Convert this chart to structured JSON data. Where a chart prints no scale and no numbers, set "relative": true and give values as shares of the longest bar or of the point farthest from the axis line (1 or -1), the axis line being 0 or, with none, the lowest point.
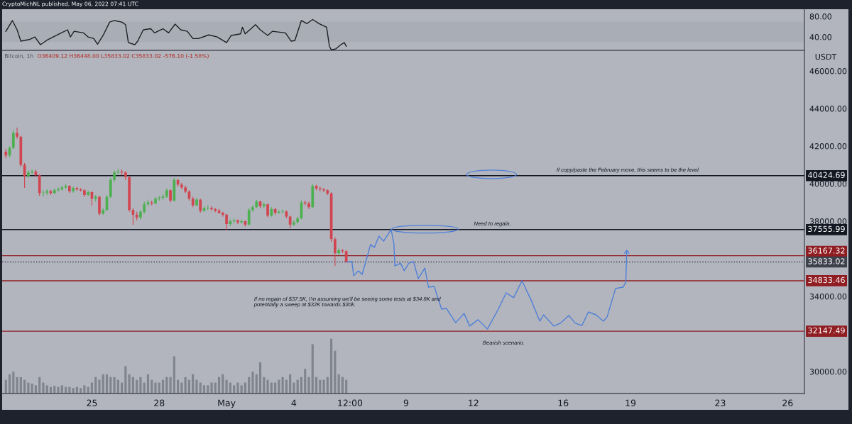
{
  "chart_data": [
    {
      "type": "line",
      "title": "CryptoMichNL published, May 06, 2022 07:41 UTC",
      "tick_labels": "y",
      "xlim": [
        "2022-04-21T00:00",
        "2022-05-26T18:00"
      ],
      "ylim": [
        14,
        94
      ],
      "yticks": [
        {
          "value": 80,
          "label": "80.00"
        },
        {
          "value": 40,
          "label": "40.00"
        }
      ],
      "bands": [
        {
          "axis": "y",
          "from": 30,
          "to": 70,
          "color": "#a9adb5"
        }
      ],
      "x": [
        "2022-04-21T04:00",
        "2022-04-21T11:00",
        "2022-04-21T16:00",
        "2022-04-21T20:00",
        "2022-04-22T05:00",
        "2022-04-22T11:00",
        "2022-04-22T17:00",
        "2022-04-23T01:00",
        "2022-04-23T13:00",
        "2022-04-23T22:00",
        "2022-04-24T01:00",
        "2022-04-24T05:00",
        "2022-04-24T15:00",
        "2022-04-24T20:00",
        "2022-04-25T02:00",
        "2022-04-25T06:00",
        "2022-04-25T12:00",
        "2022-04-25T19:00",
        "2022-04-26T00:00",
        "2022-04-26T08:00",
        "2022-04-26T12:00",
        "2022-04-26T15:00",
        "2022-04-26T22:00",
        "2022-04-27T01:00",
        "2022-04-27T07:00",
        "2022-04-27T15:00",
        "2022-04-27T19:00",
        "2022-04-28T04:00",
        "2022-04-28T10:00",
        "2022-04-28T17:00",
        "2022-04-28T23:00",
        "2022-04-29T06:00",
        "2022-04-29T12:00",
        "2022-04-29T18:00",
        "2022-04-30T05:00",
        "2022-04-30T14:00",
        "2022-05-01T00:00",
        "2022-05-01T05:00",
        "2022-05-01T15:00",
        "2022-05-01T17:00",
        "2022-05-01T20:00",
        "2022-05-02T07:00",
        "2022-05-02T12:00",
        "2022-05-02T20:00",
        "2022-05-03T01:00",
        "2022-05-03T15:00",
        "2022-05-03T21:00",
        "2022-05-04T01:00",
        "2022-05-04T08:00",
        "2022-05-04T14:00",
        "2022-05-04T20:00",
        "2022-05-05T03:00",
        "2022-05-05T11:00",
        "2022-05-05T14:00",
        "2022-05-05T16:00",
        "2022-05-05T21:00",
        "2022-05-06T03:00",
        "2022-05-06T06:00",
        "2022-05-06T08:00"
      ],
      "series": [
        {
          "color": "#1e1f23",
          "values": [
            51,
            72,
            54,
            32,
            35,
            40,
            25,
            35,
            46,
            54,
            40,
            51,
            48,
            40,
            37,
            26,
            43,
            69,
            72,
            69,
            64,
            29,
            25,
            32,
            54,
            56,
            48,
            56,
            48,
            65,
            54,
            51,
            37,
            37,
            44,
            40,
            29,
            43,
            46,
            59,
            46,
            64,
            54,
            43,
            51,
            48,
            32,
            33,
            72,
            66,
            74,
            66,
            59,
            22,
            15,
            17,
            26,
            29,
            22
          ]
        }
      ]
    },
    {
      "type": "candlestick",
      "subtitle": "Bitcoin, 1h",
      "ylabel": "USDT",
      "xlim": [
        "2022-04-21T00:00",
        "2022-05-26T18:00"
      ],
      "ylim": [
        28830,
        47060
      ],
      "xticks": [
        {
          "value": "2022-04-25",
          "label": "25"
        },
        {
          "value": "2022-04-28",
          "label": "28"
        },
        {
          "value": "2022-05-01",
          "label": "May"
        },
        {
          "value": "2022-05-04",
          "label": "4"
        },
        {
          "value": "2022-05-06T12:00",
          "label": "12:00"
        },
        {
          "value": "2022-05-09",
          "label": "9"
        },
        {
          "value": "2022-05-12",
          "label": "12"
        },
        {
          "value": "2022-05-16",
          "label": "16"
        },
        {
          "value": "2022-05-19",
          "label": "19"
        },
        {
          "value": "2022-05-23",
          "label": "23"
        },
        {
          "value": "2022-05-26",
          "label": "26"
        }
      ],
      "yticks": [
        {
          "value": 30000,
          "label": "30000.00"
        },
        {
          "value": 34000,
          "label": "34000.00"
        },
        {
          "value": 38000,
          "label": "38000.00"
        },
        {
          "value": 40000,
          "label": "40000.00"
        },
        {
          "value": 42000,
          "label": "42000.00"
        },
        {
          "value": 44000,
          "label": "44000.00"
        },
        {
          "value": 46000,
          "label": "46000.00"
        }
      ],
      "x": [
        "2022-04-21T04:00",
        "2022-04-21T08:00",
        "2022-04-21T12:00",
        "2022-04-21T16:00",
        "2022-04-21T20:00",
        "2022-04-22T00:00",
        "2022-04-22T04:00",
        "2022-04-22T08:00",
        "2022-04-22T12:00",
        "2022-04-22T16:00",
        "2022-04-22T20:00",
        "2022-04-23T00:00",
        "2022-04-23T04:00",
        "2022-04-23T08:00",
        "2022-04-23T12:00",
        "2022-04-23T16:00",
        "2022-04-23T20:00",
        "2022-04-24T00:00",
        "2022-04-24T04:00",
        "2022-04-24T08:00",
        "2022-04-24T12:00",
        "2022-04-24T16:00",
        "2022-04-24T20:00",
        "2022-04-25T00:00",
        "2022-04-25T04:00",
        "2022-04-25T08:00",
        "2022-04-25T12:00",
        "2022-04-25T16:00",
        "2022-04-25T20:00",
        "2022-04-26T00:00",
        "2022-04-26T04:00",
        "2022-04-26T08:00",
        "2022-04-26T12:00",
        "2022-04-26T16:00",
        "2022-04-26T20:00",
        "2022-04-27T00:00",
        "2022-04-27T04:00",
        "2022-04-27T08:00",
        "2022-04-27T12:00",
        "2022-04-27T16:00",
        "2022-04-27T20:00",
        "2022-04-28T00:00",
        "2022-04-28T04:00",
        "2022-04-28T08:00",
        "2022-04-28T12:00",
        "2022-04-28T16:00",
        "2022-04-28T20:00",
        "2022-04-29T00:00",
        "2022-04-29T04:00",
        "2022-04-29T08:00",
        "2022-04-29T12:00",
        "2022-04-29T16:00",
        "2022-04-29T20:00",
        "2022-04-30T00:00",
        "2022-04-30T04:00",
        "2022-04-30T08:00",
        "2022-04-30T12:00",
        "2022-04-30T16:00",
        "2022-04-30T20:00",
        "2022-05-01T00:00",
        "2022-05-01T04:00",
        "2022-05-01T08:00",
        "2022-05-01T12:00",
        "2022-05-01T16:00",
        "2022-05-01T20:00",
        "2022-05-02T00:00",
        "2022-05-02T04:00",
        "2022-05-02T08:00",
        "2022-05-02T12:00",
        "2022-05-02T16:00",
        "2022-05-02T20:00",
        "2022-05-03T00:00",
        "2022-05-03T04:00",
        "2022-05-03T08:00",
        "2022-05-03T12:00",
        "2022-05-03T16:00",
        "2022-05-03T20:00",
        "2022-05-04T00:00",
        "2022-05-04T04:00",
        "2022-05-04T08:00",
        "2022-05-04T12:00",
        "2022-05-04T16:00",
        "2022-05-04T20:00",
        "2022-05-05T00:00",
        "2022-05-05T04:00",
        "2022-05-05T08:00",
        "2022-05-05T12:00",
        "2022-05-05T16:00",
        "2022-05-05T20:00",
        "2022-05-06T00:00",
        "2022-05-06T04:00",
        "2022-05-06T08:00"
      ],
      "ohlc": [
        [
          41700,
          41850,
          41350,
          41500
        ],
        [
          41500,
          42000,
          41400,
          41900
        ],
        [
          41900,
          42850,
          41850,
          42700
        ],
        [
          42700,
          42980,
          42400,
          42500
        ],
        [
          42500,
          42550,
          40900,
          41000
        ],
        [
          41000,
          41100,
          39780,
          40400
        ],
        [
          40400,
          40700,
          40300,
          40600
        ],
        [
          40600,
          40750,
          40500,
          40650
        ],
        [
          40650,
          40750,
          40350,
          40450
        ],
        [
          40450,
          40500,
          39350,
          39500
        ],
        [
          39500,
          39650,
          39320,
          39520
        ],
        [
          39520,
          39700,
          39400,
          39600
        ],
        [
          39600,
          39680,
          39400,
          39500
        ],
        [
          39500,
          39750,
          39450,
          39650
        ],
        [
          39650,
          39800,
          39580,
          39700
        ],
        [
          39700,
          39900,
          39620,
          39800
        ],
        [
          39800,
          39980,
          39720,
          39880
        ],
        [
          39880,
          39920,
          39500,
          39600
        ],
        [
          39600,
          39850,
          39520,
          39770
        ],
        [
          39770,
          39820,
          39620,
          39700
        ],
        [
          39700,
          39760,
          39580,
          39650
        ],
        [
          39650,
          39700,
          39300,
          39400
        ],
        [
          39400,
          39620,
          39350,
          39550
        ],
        [
          39550,
          39600,
          38830,
          39200
        ],
        [
          39200,
          39400,
          39050,
          39300
        ],
        [
          39300,
          39350,
          38300,
          38400
        ],
        [
          38400,
          38700,
          38350,
          38600
        ],
        [
          38600,
          39400,
          38550,
          39300
        ],
        [
          39300,
          40300,
          39250,
          40200
        ],
        [
          40200,
          40700,
          40100,
          40600
        ],
        [
          40600,
          40790,
          40500,
          40650
        ],
        [
          40650,
          40750,
          40450,
          40600
        ],
        [
          40600,
          40650,
          40200,
          40350
        ],
        [
          40350,
          40400,
          38500,
          38600
        ],
        [
          38600,
          38700,
          37810,
          38350
        ],
        [
          38350,
          38500,
          38050,
          38200
        ],
        [
          38200,
          38600,
          38100,
          38500
        ],
        [
          38500,
          39050,
          38400,
          38900
        ],
        [
          38900,
          39150,
          38800,
          39000
        ],
        [
          39000,
          39100,
          38850,
          38950
        ],
        [
          38950,
          39300,
          38900,
          39200
        ],
        [
          39200,
          39350,
          39100,
          39250
        ],
        [
          39250,
          39450,
          39150,
          39320
        ],
        [
          39320,
          39750,
          39250,
          39650
        ],
        [
          39650,
          39700,
          39000,
          39100
        ],
        [
          39100,
          40300,
          39050,
          40200
        ],
        [
          40200,
          40250,
          39850,
          39950
        ],
        [
          39950,
          40050,
          39700,
          39800
        ],
        [
          39800,
          39900,
          39500,
          39580
        ],
        [
          39580,
          39650,
          39100,
          39200
        ],
        [
          39200,
          39300,
          38750,
          38850
        ],
        [
          38850,
          39250,
          38800,
          39150
        ],
        [
          39150,
          39200,
          38450,
          38550
        ],
        [
          38550,
          38800,
          38500,
          38700
        ],
        [
          38700,
          38850,
          38600,
          38720
        ],
        [
          38720,
          38800,
          38550,
          38650
        ],
        [
          38650,
          38700,
          38480,
          38570
        ],
        [
          38570,
          38650,
          38380,
          38450
        ],
        [
          38450,
          38500,
          38250,
          38350
        ],
        [
          38350,
          38400,
          37510,
          37850
        ],
        [
          37850,
          38100,
          37750,
          38000
        ],
        [
          38000,
          38150,
          37900,
          38050
        ],
        [
          38050,
          38100,
          37850,
          37950
        ],
        [
          37950,
          38100,
          37880,
          38000
        ],
        [
          38000,
          38050,
          37720,
          37820
        ],
        [
          37820,
          38700,
          37780,
          38600
        ],
        [
          38600,
          38850,
          38500,
          38750
        ],
        [
          38750,
          39130,
          38700,
          39050
        ],
        [
          39050,
          39100,
          38700,
          38800
        ],
        [
          38800,
          39000,
          38700,
          38900
        ],
        [
          38900,
          38950,
          38200,
          38300
        ],
        [
          38300,
          38750,
          38250,
          38650
        ],
        [
          38650,
          38700,
          38350,
          38450
        ],
        [
          38450,
          38600,
          38400,
          38500
        ],
        [
          38500,
          38620,
          38420,
          38520
        ],
        [
          38520,
          38580,
          38150,
          38250
        ],
        [
          38250,
          38300,
          37620,
          37820
        ],
        [
          37820,
          38050,
          37750,
          37950
        ],
        [
          37950,
          38250,
          37900,
          38150
        ],
        [
          38150,
          39100,
          38100,
          39000
        ],
        [
          39000,
          39100,
          38850,
          38950
        ],
        [
          38950,
          39050,
          38650,
          38750
        ],
        [
          38750,
          40000,
          38700,
          39880
        ],
        [
          39880,
          39950,
          39650,
          39750
        ],
        [
          39750,
          39850,
          39600,
          39700
        ],
        [
          39700,
          39780,
          39550,
          39650
        ],
        [
          39650,
          39700,
          39400,
          39480
        ],
        [
          39480,
          39550,
          36900,
          37050
        ],
        [
          37050,
          37150,
          35620,
          36300
        ],
        [
          36300,
          36550,
          36200,
          36450
        ],
        [
          36450,
          36520,
          36300,
          36409.12
        ],
        [
          36409.12,
          36448.0,
          35833.02,
          35833.02
        ]
      ],
      "colors": [
        "#d0454f",
        "#4caf50",
        "#4caf50",
        "#d0454f",
        "#d0454f",
        "#d0454f",
        "#4caf50",
        "#4caf50",
        "#d0454f",
        "#d0454f",
        "#4caf50",
        "#4caf50",
        "#d0454f",
        "#4caf50",
        "#4caf50",
        "#4caf50",
        "#4caf50",
        "#d0454f",
        "#4caf50",
        "#d0454f",
        "#d0454f",
        "#d0454f",
        "#4caf50",
        "#d0454f",
        "#4caf50",
        "#d0454f",
        "#4caf50",
        "#4caf50",
        "#4caf50",
        "#4caf50",
        "#4caf50",
        "#d0454f",
        "#d0454f",
        "#d0454f",
        "#d0454f",
        "#d0454f",
        "#4caf50",
        "#4caf50",
        "#4caf50",
        "#d0454f",
        "#4caf50",
        "#4caf50",
        "#4caf50",
        "#4caf50",
        "#d0454f",
        "#4caf50",
        "#d0454f",
        "#d0454f",
        "#d0454f",
        "#d0454f",
        "#d0454f",
        "#4caf50",
        "#d0454f",
        "#4caf50",
        "#4caf50",
        "#d0454f",
        "#d0454f",
        "#d0454f",
        "#d0454f",
        "#d0454f",
        "#4caf50",
        "#4caf50",
        "#d0454f",
        "#4caf50",
        "#d0454f",
        "#4caf50",
        "#4caf50",
        "#4caf50",
        "#d0454f",
        "#4caf50",
        "#d0454f",
        "#4caf50",
        "#d0454f",
        "#4caf50",
        "#4caf50",
        "#d0454f",
        "#d0454f",
        "#4caf50",
        "#4caf50",
        "#4caf50",
        "#d0454f",
        "#d0454f",
        "#4caf50",
        "#d0454f",
        "#d0454f",
        "#d0454f",
        "#d0454f",
        "#d0454f",
        "#d0454f",
        "#4caf50",
        "#d0454f",
        "#d0454f"
      ],
      "series": [
        {
          "type": "line",
          "color": "#4f7fd8",
          "x": [
            "2022-05-06T08:00",
            "2022-05-06T14:00",
            "2022-05-06T16:00",
            "2022-05-06T21:00",
            "2022-05-07T01:00",
            "2022-05-07T06:00",
            "2022-05-07T10:00",
            "2022-05-07T14:00",
            "2022-05-07T19:00",
            "2022-05-08T00:00",
            "2022-05-08T08:00",
            "2022-05-08T11:00",
            "2022-05-08T12:00",
            "2022-05-08T18:00",
            "2022-05-08T22:00",
            "2022-05-09T03:00",
            "2022-05-09T08:00",
            "2022-05-09T13:00",
            "2022-05-09T20:00",
            "2022-05-10T00:00",
            "2022-05-10T06:00",
            "2022-05-10T14:00",
            "2022-05-10T19:00",
            "2022-05-11T05:00",
            "2022-05-11T14:00",
            "2022-05-11T20:00",
            "2022-05-12T05:00",
            "2022-05-12T15:00",
            "2022-05-13T03:00",
            "2022-05-13T11:00",
            "2022-05-13T19:00",
            "2022-05-14T04:00",
            "2022-05-14T14:00",
            "2022-05-14T23:00",
            "2022-05-15T03:00",
            "2022-05-15T14:00",
            "2022-05-15T21:00",
            "2022-05-16T06:00",
            "2022-05-16T13:00",
            "2022-05-16T20:00",
            "2022-05-17T03:00",
            "2022-05-17T11:00",
            "2022-05-17T19:00",
            "2022-05-17T23:00",
            "2022-05-18T08:00",
            "2022-05-18T16:00",
            "2022-05-18T19:00",
            "2022-05-18T20:00"
          ],
          "values": [
            35830,
            35850,
            35100,
            35360,
            35170,
            36040,
            36760,
            36600,
            37210,
            36940,
            37560,
            36790,
            35620,
            35770,
            35360,
            35770,
            35850,
            34940,
            35510,
            34490,
            34530,
            33320,
            33360,
            32600,
            33090,
            32420,
            32760,
            32260,
            33360,
            34190,
            33930,
            34830,
            33770,
            32680,
            33020,
            32420,
            32570,
            32980,
            32570,
            32450,
            33170,
            33020,
            32680,
            32910,
            34420,
            34490,
            34760,
            36450
          ]
        }
      ],
      "ref_lines": [
        {
          "axis": "y",
          "value": 40424.69,
          "label": "40424.69",
          "color": "#131722"
        },
        {
          "axis": "y",
          "value": 37555.99,
          "label": "37555.99",
          "color": "#131722"
        },
        {
          "axis": "y",
          "value": 36167.32,
          "label": "36167.32",
          "color": "#8f1d22"
        },
        {
          "axis": "y",
          "value": 35833.02,
          "label": "35833.02",
          "color": "#3d414c",
          "line_style": "dotted"
        },
        {
          "axis": "y",
          "value": 34833.46,
          "label": "34833.46",
          "color": "#8f1d22"
        },
        {
          "axis": "y",
          "value": 32147.49,
          "label": "32147.49",
          "color": "#8f1d22"
        }
      ],
      "annotations": [
        "O36409.12 H36448.00 L35833.02 C35833.02 -576.10 (-1.58%)",
        "If copy/paste the February move, this seems to be the level.",
        "Need to regain.",
        "If no regain of $37.5K, I'm assuming we'll be seeing some tests at $34.8K and\npotentially a sweep at $32K towards $30k.",
        "Bearish scenario."
      ]
    },
    {
      "type": "bar",
      "relative": true,
      "tick_labels": false,
      "color": "#80848d",
      "xlim": [
        "2022-04-21T00:00",
        "2022-05-26T18:00"
      ],
      "x": [
        "2022-04-21T04:00",
        "2022-04-21T08:00",
        "2022-04-21T12:00",
        "2022-04-21T16:00",
        "2022-04-21T20:00",
        "2022-04-22T00:00",
        "2022-04-22T04:00",
        "2022-04-22T08:00",
        "2022-04-22T12:00",
        "2022-04-22T16:00",
        "2022-04-22T20:00",
        "2022-04-23T00:00",
        "2022-04-23T04:00",
        "2022-04-23T08:00",
        "2022-04-23T12:00",
        "2022-04-23T16:00",
        "2022-04-23T20:00",
        "2022-04-24T00:00",
        "2022-04-24T04:00",
        "2022-04-24T08:00",
        "2022-04-24T12:00",
        "2022-04-24T16:00",
        "2022-04-24T20:00",
        "2022-04-25T00:00",
        "2022-04-25T04:00",
        "2022-04-25T08:00",
        "2022-04-25T12:00",
        "2022-04-25T16:00",
        "2022-04-25T20:00",
        "2022-04-26T00:00",
        "2022-04-26T04:00",
        "2022-04-26T08:00",
        "2022-04-26T12:00",
        "2022-04-26T16:00",
        "2022-04-26T20:00",
        "2022-04-27T00:00",
        "2022-04-27T04:00",
        "2022-04-27T08:00",
        "2022-04-27T12:00",
        "2022-04-27T16:00",
        "2022-04-27T20:00",
        "2022-04-28T00:00",
        "2022-04-28T04:00",
        "2022-04-28T08:00",
        "2022-04-28T12:00",
        "2022-04-28T16:00",
        "2022-04-28T20:00",
        "2022-04-29T00:00",
        "2022-04-29T04:00",
        "2022-04-29T08:00",
        "2022-04-29T12:00",
        "2022-04-29T16:00",
        "2022-04-29T20:00",
        "2022-04-30T00:00",
        "2022-04-30T04:00",
        "2022-04-30T08:00",
        "2022-04-30T12:00",
        "2022-04-30T16:00",
        "2022-04-30T20:00",
        "2022-05-01T00:00",
        "2022-05-01T04:00",
        "2022-05-01T08:00",
        "2022-05-01T12:00",
        "2022-05-01T16:00",
        "2022-05-01T20:00",
        "2022-05-02T00:00",
        "2022-05-02T04:00",
        "2022-05-02T08:00",
        "2022-05-02T12:00",
        "2022-05-02T16:00",
        "2022-05-02T20:00",
        "2022-05-03T00:00",
        "2022-05-03T04:00",
        "2022-05-03T08:00",
        "2022-05-03T12:00",
        "2022-05-03T16:00",
        "2022-05-03T20:00",
        "2022-05-04T00:00",
        "2022-05-04T04:00",
        "2022-05-04T08:00",
        "2022-05-04T12:00",
        "2022-05-04T16:00",
        "2022-05-04T20:00",
        "2022-05-05T00:00",
        "2022-05-05T04:00",
        "2022-05-05T08:00",
        "2022-05-05T12:00",
        "2022-05-05T16:00",
        "2022-05-05T20:00",
        "2022-05-06T00:00",
        "2022-05-06T04:00",
        "2022-05-06T08:00"
      ],
      "values": [
        0.25,
        0.35,
        0.4,
        0.3,
        0.3,
        0.25,
        0.2,
        0.18,
        0.15,
        0.3,
        0.2,
        0.15,
        0.12,
        0.14,
        0.12,
        0.15,
        0.12,
        0.12,
        0.1,
        0.12,
        0.1,
        0.15,
        0.12,
        0.2,
        0.3,
        0.25,
        0.35,
        0.35,
        0.3,
        0.3,
        0.25,
        0.2,
        0.5,
        0.35,
        0.3,
        0.25,
        0.3,
        0.2,
        0.35,
        0.25,
        0.2,
        0.2,
        0.25,
        0.3,
        0.3,
        0.68,
        0.25,
        0.2,
        0.3,
        0.25,
        0.35,
        0.25,
        0.2,
        0.15,
        0.15,
        0.2,
        0.2,
        0.3,
        0.35,
        0.25,
        0.2,
        0.15,
        0.2,
        0.15,
        0.2,
        0.3,
        0.4,
        0.35,
        0.57,
        0.3,
        0.25,
        0.2,
        0.2,
        0.25,
        0.3,
        0.25,
        0.35,
        0.2,
        0.25,
        0.3,
        0.45,
        0.3,
        0.9,
        0.3,
        0.25,
        0.25,
        0.3,
        1,
        0.78,
        0.35,
        0.3,
        0.25
      ]
    }
  ]
}
